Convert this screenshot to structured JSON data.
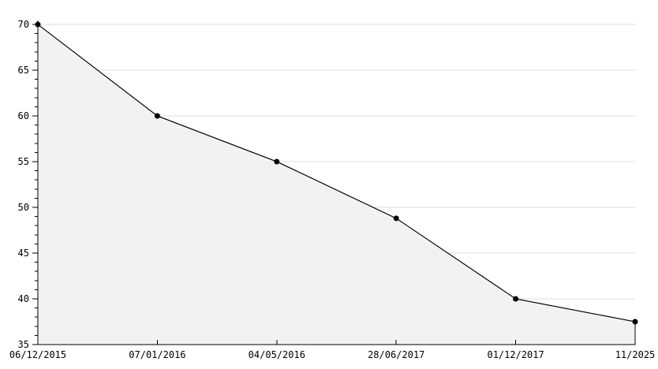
{
  "chart_data": {
    "type": "area",
    "title": "",
    "xlabel": "",
    "ylabel": "",
    "legend_position": "none",
    "grid": "horizontal-major-only",
    "categories": [
      "06/12/2015",
      "07/01/2016",
      "04/05/2016",
      "28/06/2017",
      "01/12/2017",
      "11/2025"
    ],
    "series": [
      {
        "name": "value",
        "values": [
          70,
          60,
          55,
          48.8,
          40,
          37.5
        ]
      }
    ],
    "ylim": [
      35,
      70
    ],
    "y_major_step": 5,
    "y_minor_step": 1,
    "y_tick_labels": [
      "35",
      "40",
      "45",
      "50",
      "55",
      "60",
      "65",
      "70"
    ],
    "marker": "filled-circle",
    "colors": {
      "line": "#000000",
      "marker": "#000000",
      "area_fill": "#f2f2f2",
      "gridline": "#dcdcdc",
      "axis": "#000000",
      "tick_text": "#000000",
      "background": "#ffffff"
    }
  }
}
